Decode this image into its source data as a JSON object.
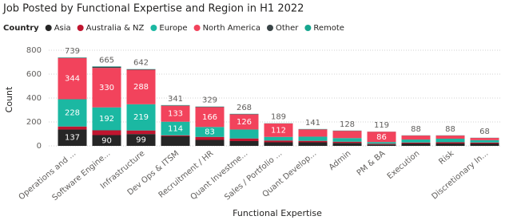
{
  "chart_data": {
    "type": "stacked_bar",
    "title": "Job Posted by Functional Expertise and Region in H1 2022",
    "legend_title": "Country",
    "x_label": "Functional Expertise",
    "y_label": "Count",
    "categories": [
      "Operations and ...",
      "Software Engine...",
      "Infrastructure",
      "Dev Ops & ITSM",
      "Recruitment / HR",
      "Quant Investme...",
      "Sales / Portfolio ...",
      "Quant Develop...",
      "Admin",
      "PM & BA",
      "Execution",
      "Risk",
      "Discretionary In..."
    ],
    "series": [
      {
        "name": "Asia",
        "color": "#262626",
        "values": [
          137,
          90,
          99,
          80,
          50,
          40,
          30,
          30,
          25,
          12,
          20,
          20,
          20
        ]
      },
      {
        "name": "Australia & NZ",
        "color": "#c0152f",
        "values": [
          25,
          40,
          30,
          8,
          25,
          22,
          15,
          12,
          10,
          6,
          8,
          10,
          8
        ]
      },
      {
        "name": "Europe",
        "color": "#1bb8a2",
        "values": [
          228,
          192,
          219,
          114,
          83,
          75,
          30,
          35,
          30,
          14,
          25,
          30,
          20
        ]
      },
      {
        "name": "North America",
        "color": "#f2435c",
        "values": [
          344,
          330,
          288,
          133,
          166,
          126,
          112,
          60,
          60,
          86,
          33,
          26,
          18
        ]
      },
      {
        "name": "Other",
        "color": "#3a4447",
        "values": [
          3,
          10,
          4,
          4,
          3,
          3,
          1,
          2,
          2,
          1,
          1,
          1,
          1
        ]
      },
      {
        "name": "Remote",
        "color": "#17a68f",
        "values": [
          2,
          3,
          2,
          2,
          2,
          2,
          1,
          2,
          1,
          0,
          1,
          1,
          1
        ]
      }
    ],
    "totals": [
      739,
      665,
      642,
      341,
      329,
      268,
      189,
      141,
      128,
      119,
      88,
      88,
      68
    ],
    "ylim": [
      0,
      800
    ],
    "yticks": [
      0,
      200,
      400,
      600,
      800
    ],
    "grid": true
  }
}
